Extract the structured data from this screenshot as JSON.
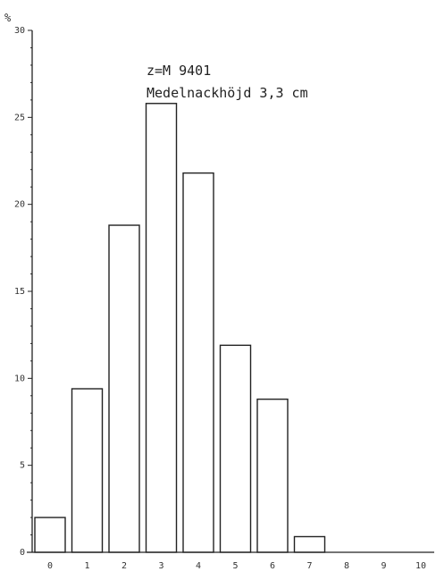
{
  "chart_data": {
    "type": "bar",
    "y_unit": "%",
    "categories": [
      "0",
      "1",
      "2",
      "3",
      "4",
      "5",
      "6",
      "7",
      "8",
      "9",
      "10"
    ],
    "values": [
      2,
      9.4,
      18.8,
      25.8,
      21.8,
      11.9,
      8.8,
      0.9,
      0,
      0,
      0
    ],
    "x_tick_labels": [
      "0",
      "1",
      "2",
      "3",
      "4",
      "5",
      "6",
      "7",
      "8",
      "9",
      "10"
    ],
    "y_tick_labels": [
      "0",
      "5",
      "10",
      "15",
      "20",
      "25",
      "30"
    ],
    "ylim": [
      0,
      30
    ],
    "annotations": [
      "z=M 9401",
      "Medelnackhöjd 3,3 cm"
    ],
    "grid": false,
    "colors": {
      "bar_fill": "#ffffff",
      "stroke": "#222222"
    }
  }
}
